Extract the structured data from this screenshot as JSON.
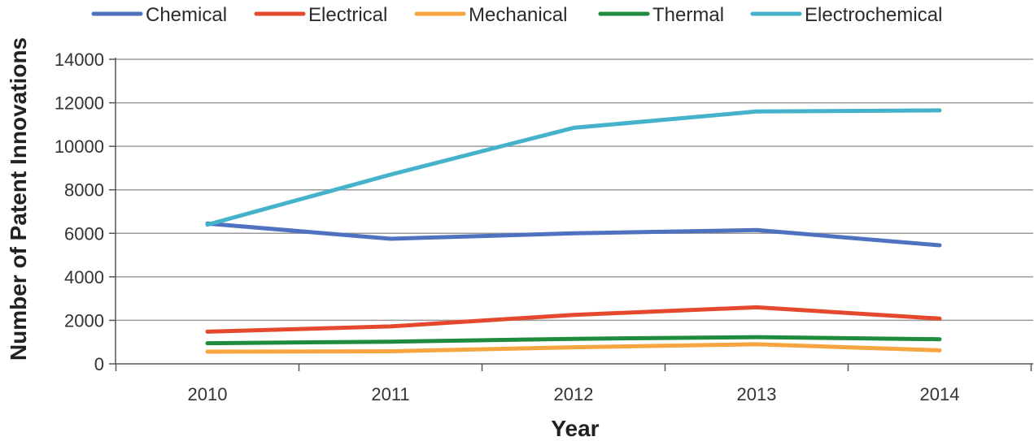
{
  "chart_data": {
    "type": "line",
    "title": "",
    "xlabel": "Year",
    "ylabel": "Number of Patent Innovations",
    "x": [
      "2010",
      "2011",
      "2012",
      "2013",
      "2014"
    ],
    "ylim": [
      0,
      14000
    ],
    "yticks": [
      0,
      2000,
      4000,
      6000,
      8000,
      10000,
      12000,
      14000
    ],
    "yticks_labels": [
      "0",
      "2000",
      "4000",
      "6000",
      "8000",
      "10000",
      "12000",
      "14000"
    ],
    "grid": "horizontal",
    "legend_position": "top",
    "series": [
      {
        "name": "Chemical",
        "color": "#4f72c0",
        "values": [
          6450,
          5750,
          6000,
          6150,
          5450
        ]
      },
      {
        "name": "Electrical",
        "color": "#e4492d",
        "values": [
          1480,
          1720,
          2250,
          2600,
          2080
        ]
      },
      {
        "name": "Mechanical",
        "color": "#f7a540",
        "values": [
          560,
          580,
          760,
          900,
          620
        ]
      },
      {
        "name": "Thermal",
        "color": "#1e8b3d",
        "values": [
          950,
          1020,
          1150,
          1230,
          1130
        ]
      },
      {
        "name": "Electrochemical",
        "color": "#44b2cb",
        "values": [
          6400,
          8700,
          10850,
          11600,
          11650
        ]
      }
    ]
  }
}
